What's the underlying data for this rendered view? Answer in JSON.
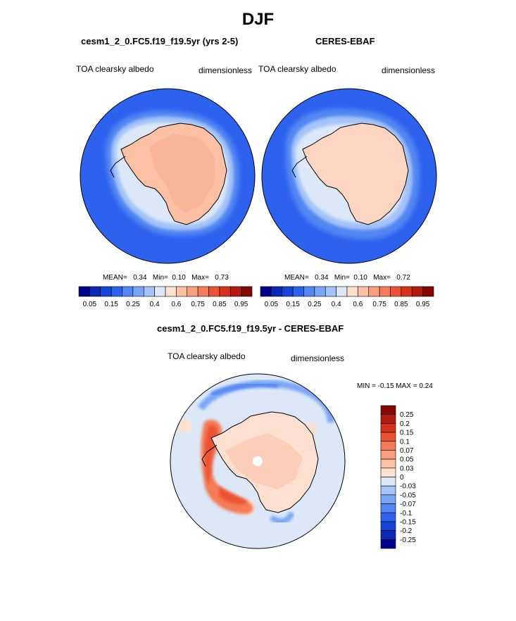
{
  "title": "DJF",
  "panels": [
    {
      "title": "cesm1_2_0.FC5.f19_f19.5yr (yrs 2-5)",
      "left_label": "TOA clearsky albedo",
      "right_label": "dimensionless",
      "stats": {
        "mean_label": "MEAN=",
        "mean": "0.34",
        "min_label": "Min=",
        "min": "0.10",
        "max_label": "Max=",
        "max": "0.73"
      }
    },
    {
      "title": "CERES-EBAF",
      "left_label": "TOA clearsky albedo",
      "right_label": "dimensionless",
      "stats": {
        "mean_label": "MEAN=",
        "mean": "0.34",
        "min_label": "Min=",
        "min": "0.10",
        "max_label": "Max=",
        "max": "0.72"
      }
    },
    {
      "title": "cesm1_2_0.FC5.f19_f19.5yr - CERES-EBAF",
      "left_label": "TOA clearsky albedo",
      "right_label": "dimensionless",
      "minmax": "MIN =  -0.15 MAX =   0.24"
    }
  ],
  "chart_data": [
    {
      "type": "heatmap",
      "title": "cesm1_2_0.FC5.f19_f19.5yr (yrs 2-5)",
      "variable": "TOA clearsky albedo",
      "units": "dimensionless",
      "projection": "south polar stereographic",
      "mean": 0.34,
      "min": 0.1,
      "max": 0.73,
      "colorbar": {
        "orientation": "horizontal",
        "colors": [
          "#00008b",
          "#0a2ab5",
          "#1545d6",
          "#2d62ef",
          "#5186f3",
          "#7aa5f6",
          "#a4c3f8",
          "#dce8f8",
          "#fde0d0",
          "#fcc0a5",
          "#f99f80",
          "#f47b57",
          "#ec5332",
          "#d6311a",
          "#b11a0c",
          "#830800"
        ],
        "tick_labels": [
          "0.05",
          "0.15",
          "0.25",
          "0.4",
          "0.6",
          "0.75",
          "0.85",
          "0.95"
        ]
      }
    },
    {
      "type": "heatmap",
      "title": "CERES-EBAF",
      "variable": "TOA clearsky albedo",
      "units": "dimensionless",
      "projection": "south polar stereographic",
      "mean": 0.34,
      "min": 0.1,
      "max": 0.72,
      "colorbar": {
        "orientation": "horizontal",
        "colors": [
          "#00008b",
          "#0a2ab5",
          "#1545d6",
          "#2d62ef",
          "#5186f3",
          "#7aa5f6",
          "#a4c3f8",
          "#dce8f8",
          "#fde0d0",
          "#fcc0a5",
          "#f99f80",
          "#f47b57",
          "#ec5332",
          "#d6311a",
          "#b11a0c",
          "#830800"
        ],
        "tick_labels": [
          "0.05",
          "0.15",
          "0.25",
          "0.4",
          "0.6",
          "0.75",
          "0.85",
          "0.95"
        ]
      }
    },
    {
      "type": "heatmap",
      "title": "cesm1_2_0.FC5.f19_f19.5yr - CERES-EBAF",
      "variable": "TOA clearsky albedo",
      "units": "dimensionless",
      "projection": "south polar stereographic",
      "min": -0.15,
      "max": 0.24,
      "colorbar": {
        "orientation": "vertical",
        "colors": [
          "#830800",
          "#b11a0c",
          "#d6311a",
          "#ec5332",
          "#f47b57",
          "#f99f80",
          "#fcc0a5",
          "#fde0d0",
          "#dce8f8",
          "#a4c3f8",
          "#7aa5f6",
          "#5186f3",
          "#2d62ef",
          "#1545d6",
          "#0a2ab5",
          "#00008b"
        ],
        "tick_labels": [
          "0.25",
          "0.2",
          "0.15",
          "0.1",
          "0.07",
          "0.05",
          "0.03",
          "0",
          "-0.03",
          "-0.05",
          "-0.07",
          "-0.1",
          "-0.15",
          "-0.2",
          "-0.25"
        ]
      }
    }
  ]
}
